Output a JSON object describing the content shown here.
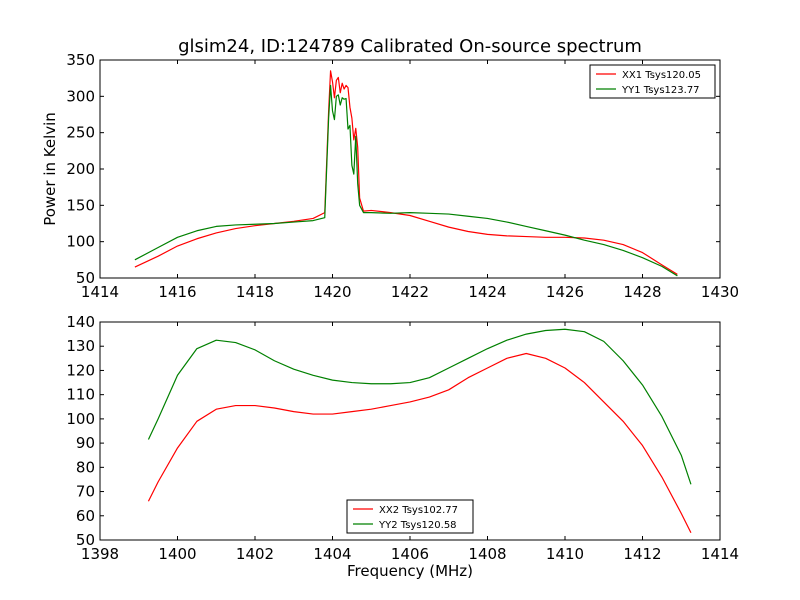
{
  "chart_data": [
    {
      "type": "line",
      "title": "glsim24, ID:124789 Calibrated On-source spectrum",
      "xlabel": "",
      "ylabel": "Power in Kelvin",
      "xlim": [
        1414,
        1430
      ],
      "ylim": [
        50,
        350
      ],
      "xticks": [
        1414,
        1416,
        1418,
        1420,
        1422,
        1424,
        1426,
        1428,
        1430
      ],
      "yticks": [
        50,
        100,
        150,
        200,
        250,
        300,
        350
      ],
      "grid": false,
      "legend_position": "top-right",
      "series": [
        {
          "name": "XX1 Tsys120.05",
          "color": "#ff0000",
          "points": [
            [
              1414.9,
              65
            ],
            [
              1415.5,
              80
            ],
            [
              1416,
              94
            ],
            [
              1416.5,
              104
            ],
            [
              1417,
              112
            ],
            [
              1417.5,
              118
            ],
            [
              1418,
              122
            ],
            [
              1418.5,
              125
            ],
            [
              1419,
              128
            ],
            [
              1419.5,
              132
            ],
            [
              1419.8,
              140
            ],
            [
              1419.9,
              280
            ],
            [
              1419.95,
              335
            ],
            [
              1420.0,
              320
            ],
            [
              1420.05,
              298
            ],
            [
              1420.1,
              322
            ],
            [
              1420.15,
              326
            ],
            [
              1420.2,
              305
            ],
            [
              1420.25,
              318
            ],
            [
              1420.3,
              310
            ],
            [
              1420.35,
              315
            ],
            [
              1420.4,
              312
            ],
            [
              1420.45,
              285
            ],
            [
              1420.5,
              270
            ],
            [
              1420.55,
              240
            ],
            [
              1420.6,
              256
            ],
            [
              1420.65,
              230
            ],
            [
              1420.7,
              160
            ],
            [
              1420.8,
              142
            ],
            [
              1421,
              143
            ],
            [
              1421.5,
              140
            ],
            [
              1422,
              136
            ],
            [
              1422.5,
              128
            ],
            [
              1423,
              120
            ],
            [
              1423.5,
              114
            ],
            [
              1424,
              110
            ],
            [
              1424.5,
              108
            ],
            [
              1425,
              107
            ],
            [
              1425.5,
              106
            ],
            [
              1426,
              106
            ],
            [
              1426.5,
              105
            ],
            [
              1427,
              102
            ],
            [
              1427.5,
              96
            ],
            [
              1428,
              85
            ],
            [
              1428.5,
              68
            ],
            [
              1428.9,
              55
            ]
          ]
        },
        {
          "name": "YY1 Tsys123.77",
          "color": "#008000",
          "points": [
            [
              1414.9,
              75
            ],
            [
              1415.5,
              92
            ],
            [
              1416,
              106
            ],
            [
              1416.5,
              115
            ],
            [
              1417,
              121
            ],
            [
              1417.5,
              123
            ],
            [
              1418,
              124
            ],
            [
              1418.5,
              125
            ],
            [
              1419,
              127
            ],
            [
              1419.5,
              129
            ],
            [
              1419.8,
              133
            ],
            [
              1419.9,
              270
            ],
            [
              1419.95,
              315
            ],
            [
              1420.0,
              280
            ],
            [
              1420.05,
              268
            ],
            [
              1420.1,
              300
            ],
            [
              1420.15,
              302
            ],
            [
              1420.2,
              288
            ],
            [
              1420.25,
              298
            ],
            [
              1420.3,
              296
            ],
            [
              1420.35,
              297
            ],
            [
              1420.4,
              255
            ],
            [
              1420.45,
              260
            ],
            [
              1420.5,
              205
            ],
            [
              1420.55,
              193
            ],
            [
              1420.6,
              245
            ],
            [
              1420.65,
              180
            ],
            [
              1420.7,
              150
            ],
            [
              1420.8,
              140
            ],
            [
              1421,
              140
            ],
            [
              1421.5,
              139
            ],
            [
              1422,
              140
            ],
            [
              1422.5,
              139
            ],
            [
              1423,
              138
            ],
            [
              1423.5,
              135
            ],
            [
              1424,
              132
            ],
            [
              1424.5,
              127
            ],
            [
              1425,
              121
            ],
            [
              1425.5,
              115
            ],
            [
              1426,
              109
            ],
            [
              1426.5,
              102
            ],
            [
              1427,
              96
            ],
            [
              1427.5,
              88
            ],
            [
              1428,
              78
            ],
            [
              1428.5,
              66
            ],
            [
              1428.9,
              53
            ]
          ]
        }
      ]
    },
    {
      "type": "line",
      "title": "",
      "xlabel": "Frequency (MHz)",
      "ylabel": "",
      "xlim": [
        1398,
        1414
      ],
      "ylim": [
        50,
        140
      ],
      "xticks": [
        1398,
        1400,
        1402,
        1404,
        1406,
        1408,
        1410,
        1412,
        1414
      ],
      "yticks": [
        50,
        60,
        70,
        80,
        90,
        100,
        110,
        120,
        130,
        140
      ],
      "grid": false,
      "legend_position": "bottom-center",
      "series": [
        {
          "name": "XX2 Tsys102.77",
          "color": "#ff0000",
          "points": [
            [
              1399.25,
              66
            ],
            [
              1399.5,
              74
            ],
            [
              1400,
              88
            ],
            [
              1400.5,
              99
            ],
            [
              1401,
              104
            ],
            [
              1401.5,
              105.5
            ],
            [
              1402,
              105.5
            ],
            [
              1402.5,
              104.5
            ],
            [
              1403,
              103
            ],
            [
              1403.5,
              102
            ],
            [
              1404,
              102
            ],
            [
              1404.5,
              103
            ],
            [
              1405,
              104
            ],
            [
              1405.5,
              105.5
            ],
            [
              1406,
              107
            ],
            [
              1406.5,
              109
            ],
            [
              1407,
              112
            ],
            [
              1407.5,
              117
            ],
            [
              1408,
              121
            ],
            [
              1408.5,
              125
            ],
            [
              1409,
              127
            ],
            [
              1409.5,
              125
            ],
            [
              1410,
              121
            ],
            [
              1410.5,
              115
            ],
            [
              1411,
              107
            ],
            [
              1411.5,
              99
            ],
            [
              1412,
              89
            ],
            [
              1412.5,
              76
            ],
            [
              1413,
              61
            ],
            [
              1413.25,
              53
            ]
          ]
        },
        {
          "name": "YY2 Tsys120.58",
          "color": "#008000",
          "points": [
            [
              1399.25,
              91.5
            ],
            [
              1399.5,
              100
            ],
            [
              1400,
              118
            ],
            [
              1400.5,
              129
            ],
            [
              1401,
              132.5
            ],
            [
              1401.5,
              131.5
            ],
            [
              1402,
              128.5
            ],
            [
              1402.5,
              124
            ],
            [
              1403,
              120.5
            ],
            [
              1403.5,
              118
            ],
            [
              1404,
              116
            ],
            [
              1404.5,
              115
            ],
            [
              1405,
              114.5
            ],
            [
              1405.5,
              114.5
            ],
            [
              1406,
              115
            ],
            [
              1406.5,
              117
            ],
            [
              1407,
              121
            ],
            [
              1407.5,
              125
            ],
            [
              1408,
              129
            ],
            [
              1408.5,
              132.5
            ],
            [
              1409,
              135
            ],
            [
              1409.5,
              136.5
            ],
            [
              1410,
              137
            ],
            [
              1410.5,
              136
            ],
            [
              1411,
              132
            ],
            [
              1411.5,
              124
            ],
            [
              1412,
              114
            ],
            [
              1412.5,
              101
            ],
            [
              1413,
              85
            ],
            [
              1413.25,
              73
            ]
          ]
        }
      ]
    }
  ]
}
